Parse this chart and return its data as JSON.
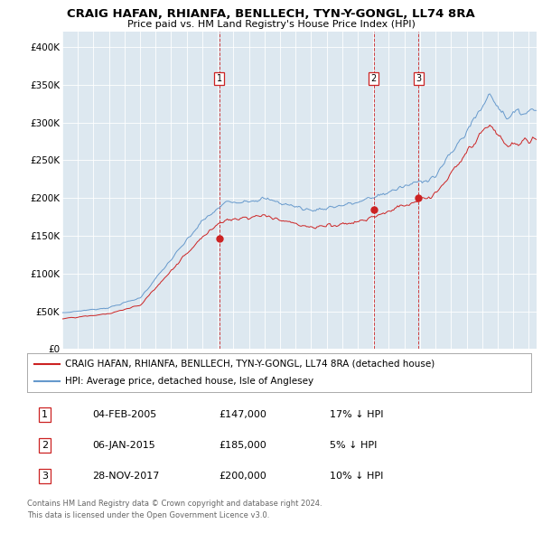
{
  "title": "CRAIG HAFAN, RHIANFA, BENLLECH, TYN-Y-GONGL, LL74 8RA",
  "subtitle": "Price paid vs. HM Land Registry's House Price Index (HPI)",
  "legend_line1": "CRAIG HAFAN, RHIANFA, BENLLECH, TYN-Y-GONGL, LL74 8RA (detached house)",
  "legend_line2": "HPI: Average price, detached house, Isle of Anglesey",
  "footer1": "Contains HM Land Registry data © Crown copyright and database right 2024.",
  "footer2": "This data is licensed under the Open Government Licence v3.0.",
  "transactions": [
    {
      "num": 1,
      "date": "04-FEB-2005",
      "price": "£147,000",
      "pct": "17% ↓ HPI",
      "year": 2005.09,
      "price_val": 147000
    },
    {
      "num": 2,
      "date": "06-JAN-2015",
      "price": "£185,000",
      "pct": "5% ↓ HPI",
      "year": 2015.02,
      "price_val": 185000
    },
    {
      "num": 3,
      "date": "28-NOV-2017",
      "price": "£200,000",
      "pct": "10% ↓ HPI",
      "year": 2017.91,
      "price_val": 200000
    }
  ],
  "hpi_color": "#6699cc",
  "price_color": "#cc2222",
  "plot_bg": "#dde8f0",
  "ylim": [
    0,
    420000
  ],
  "yticks": [
    0,
    50000,
    100000,
    150000,
    200000,
    250000,
    300000,
    350000,
    400000
  ],
  "ytick_labels": [
    "£0",
    "£50K",
    "£100K",
    "£150K",
    "£200K",
    "£250K",
    "£300K",
    "£350K",
    "£400K"
  ],
  "xlim_start": 1995,
  "xlim_end": 2025.5
}
